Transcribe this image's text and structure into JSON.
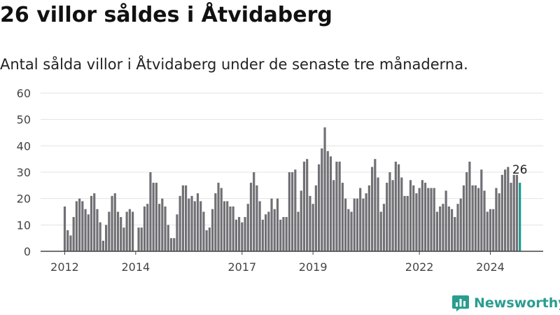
{
  "header": {
    "title": "26 villor såldes i Åtvidaberg",
    "subtitle": "Antal sålda villor i Åtvidaberg under de senaste tre månaderna."
  },
  "brand": {
    "name": "Newsworthy",
    "logo_icon": "newsworthy-bar-chart-icon",
    "color": "#2a9d8f"
  },
  "colors": {
    "bar": "#717075",
    "highlight": "#1e9a91",
    "grid": "#e3e3e3",
    "axis": "#444444"
  },
  "chart_data": {
    "type": "bar",
    "x_start": "2012-01",
    "ylim": [
      0,
      60
    ],
    "yticks": [
      0,
      10,
      20,
      30,
      40,
      50,
      60
    ],
    "xticks": [
      "2012",
      "2014",
      "2017",
      "2019",
      "2022",
      "2024"
    ],
    "highlight_label": "26",
    "grid": true,
    "values": [
      17,
      8,
      6,
      13,
      19,
      20,
      19,
      16,
      14,
      21,
      22,
      16,
      11,
      4,
      10,
      15,
      21,
      22,
      15,
      13,
      9,
      15,
      16,
      15,
      null,
      9,
      9,
      17,
      18,
      30,
      26,
      26,
      18,
      20,
      17,
      10,
      5,
      5,
      14,
      21,
      25,
      25,
      20,
      21,
      19,
      22,
      19,
      15,
      8,
      9,
      16,
      22,
      26,
      24,
      19,
      19,
      17,
      17,
      12,
      13,
      11,
      13,
      18,
      26,
      30,
      25,
      19,
      12,
      14,
      15,
      20,
      16,
      20,
      12,
      13,
      13,
      30,
      30,
      31,
      15,
      23,
      34,
      35,
      21,
      18,
      25,
      33,
      39,
      47,
      38,
      36,
      27,
      34,
      34,
      26,
      20,
      16,
      15,
      20,
      20,
      24,
      20,
      22,
      25,
      32,
      35,
      28,
      15,
      18,
      26,
      30,
      27,
      34,
      33,
      28,
      21,
      21,
      27,
      25,
      22,
      24,
      27,
      26,
      24,
      24,
      24,
      15,
      17,
      18,
      23,
      17,
      16,
      13,
      18,
      20,
      25,
      30,
      34,
      25,
      25,
      24,
      31,
      23,
      15,
      16,
      16,
      24,
      22,
      29,
      31,
      32,
      26,
      29,
      29,
      26
    ]
  }
}
